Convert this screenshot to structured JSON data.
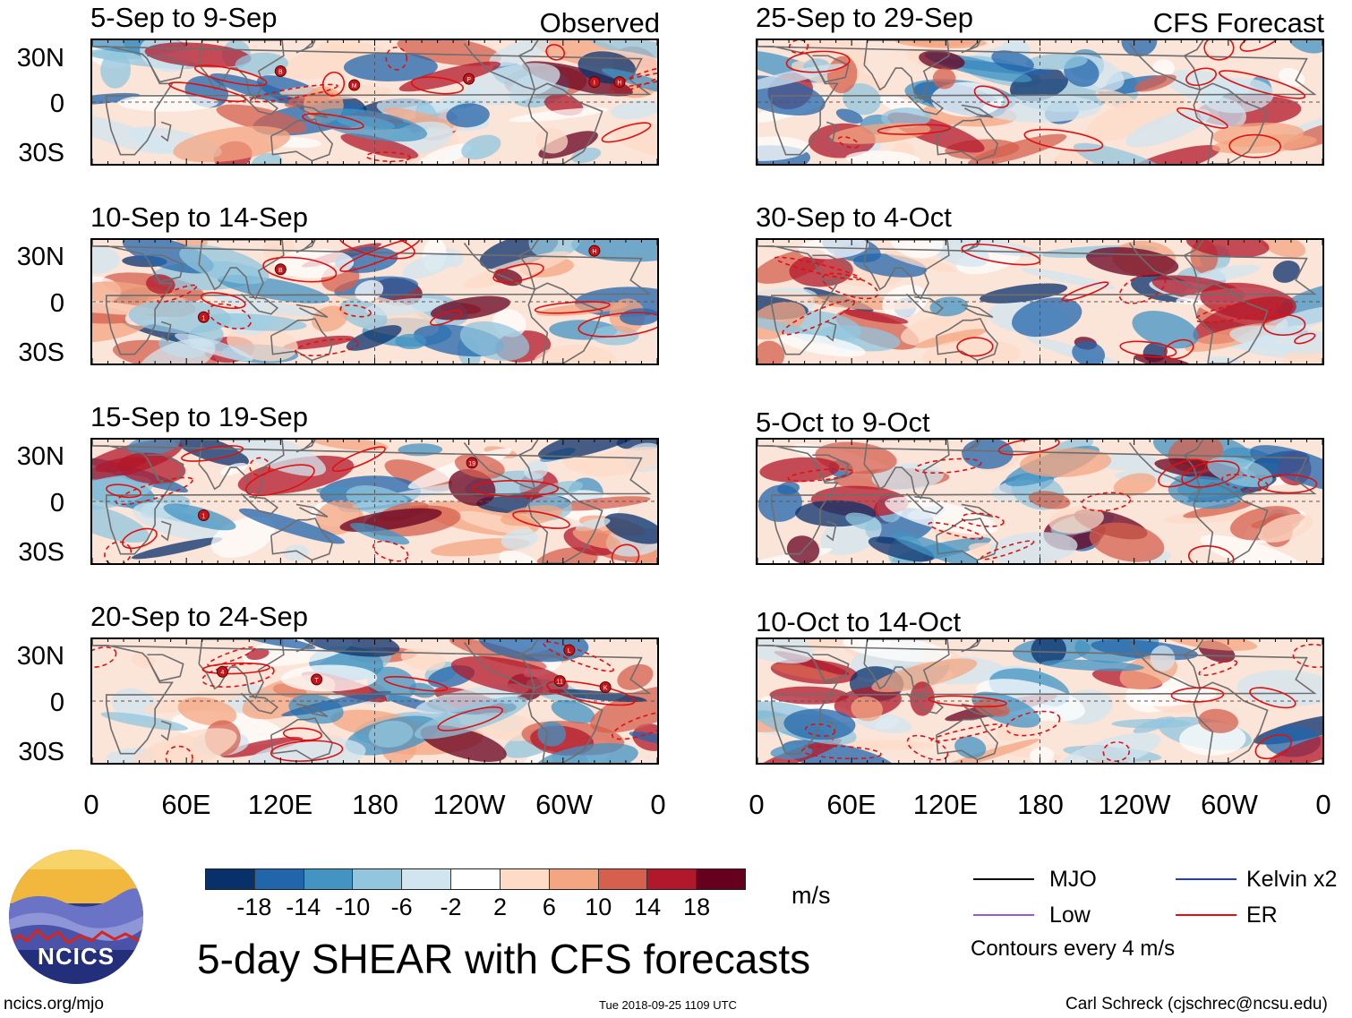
{
  "header": {
    "observed_tag": "Observed",
    "forecast_tag": "CFS Forecast"
  },
  "panels": {
    "observed": [
      {
        "title": "5-Sep to 9-Sep",
        "storms": [
          {
            "label": "B",
            "lon": 120,
            "lat": 20
          },
          {
            "label": "M",
            "lon": 167,
            "lat": 11
          },
          {
            "label": "P",
            "lon": 240,
            "lat": 15
          },
          {
            "label": "I",
            "lon": 320,
            "lat": 13
          },
          {
            "label": "H",
            "lon": 336,
            "lat": 13
          }
        ]
      },
      {
        "title": "10-Sep to 14-Sep",
        "storms": [
          {
            "label": "H",
            "lon": 320,
            "lat": 33
          },
          {
            "label": "B",
            "lon": 120,
            "lat": 21
          },
          {
            "label": "1",
            "lon": 71,
            "lat": -10
          }
        ]
      },
      {
        "title": "15-Sep to 19-Sep",
        "storms": [
          {
            "label": "19",
            "lon": 242,
            "lat": 25
          },
          {
            "label": "1",
            "lon": 71,
            "lat": -9
          }
        ]
      },
      {
        "title": "20-Sep to 24-Sep",
        "storms": [
          {
            "label": "L",
            "lon": 304,
            "lat": 33
          },
          {
            "label": "4",
            "lon": 83,
            "lat": 19
          },
          {
            "label": "T",
            "lon": 143,
            "lat": 14
          },
          {
            "label": "11",
            "lon": 298,
            "lat": 13
          },
          {
            "label": "K",
            "lon": 327,
            "lat": 9
          }
        ]
      }
    ],
    "forecast": [
      {
        "title": "25-Sep to 29-Sep",
        "storms": []
      },
      {
        "title": "30-Sep to 4-Oct",
        "storms": []
      },
      {
        "title": "5-Oct to 9-Oct",
        "storms": []
      },
      {
        "title": "10-Oct to 14-Oct",
        "storms": []
      }
    ]
  },
  "axes": {
    "lat_labels": [
      {
        "text": "30N",
        "lat": 30
      },
      {
        "text": "0",
        "lat": 0
      },
      {
        "text": "30S",
        "lat": -30
      }
    ],
    "lon_labels": [
      {
        "text": "0",
        "lon": 0
      },
      {
        "text": "60E",
        "lon": 60
      },
      {
        "text": "120E",
        "lon": 120
      },
      {
        "text": "180",
        "lon": 180
      },
      {
        "text": "120W",
        "lon": 240
      },
      {
        "text": "60W",
        "lon": 300
      },
      {
        "text": "0",
        "lon": 360
      }
    ],
    "lat_range": [
      -40,
      40
    ],
    "lon_range": [
      0,
      360
    ]
  },
  "colorbar": {
    "colors": [
      "#08306b",
      "#2166ac",
      "#4393c3",
      "#92c5de",
      "#d1e5f0",
      "#ffffff",
      "#fddbc7",
      "#f4a582",
      "#d6604d",
      "#b2182b",
      "#67001f"
    ],
    "tick_labels": [
      "-18",
      "-14",
      "-10",
      "-6",
      "-2",
      "2",
      "6",
      "10",
      "14",
      "18"
    ],
    "units": "m/s"
  },
  "legend": {
    "items": [
      {
        "label": "MJO",
        "color": "#000000"
      },
      {
        "label": "Kelvin x2",
        "color": "#1f3fbf"
      },
      {
        "label": "Low",
        "color": "#9b59d0"
      },
      {
        "label": "ER",
        "color": "#e01010"
      }
    ],
    "note": "Contours every 4 m/s"
  },
  "title": "5-day SHEAR with CFS forecasts",
  "footer": {
    "url": "ncics.org/mjo",
    "timestamp": "Tue 2018-09-25 1109 UTC",
    "credit": "Carl Schreck (cjschrec@ncsu.edu)"
  },
  "logo": {
    "text": "NCICS"
  }
}
